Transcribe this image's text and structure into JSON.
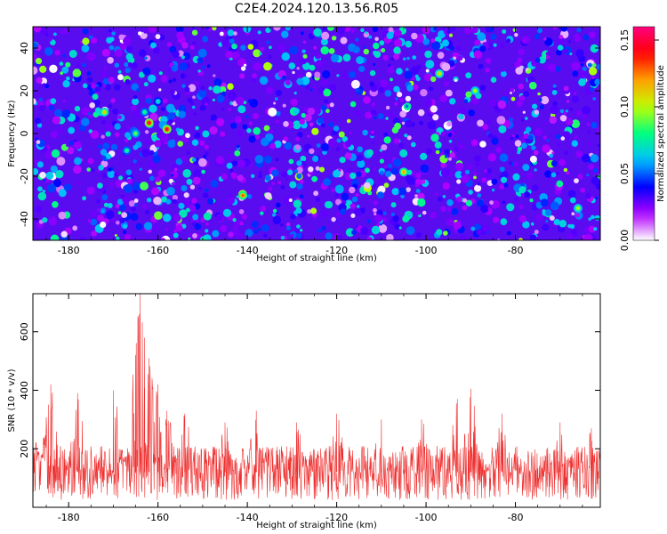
{
  "figure": {
    "title": "C2E4.2024.120.13.56.R05"
  },
  "chart_data": [
    {
      "type": "heatmap",
      "xlabel": "Height of straight line (km)",
      "ylabel": "Frequency (Hz)",
      "xlim": [
        -188,
        -61
      ],
      "ylim": [
        -50,
        50
      ],
      "xticks": [
        "-180",
        "-160",
        "-140",
        "-120",
        "-100",
        "-80"
      ],
      "yticks": [
        "-40",
        "-20",
        "0",
        "20",
        "40"
      ],
      "colorbar": {
        "label": "Normalized spectral amplitude",
        "range": [
          0,
          0.16
        ],
        "ticks": [
          "0.00",
          "0.05",
          "0.10",
          "0.15"
        ],
        "colors": [
          "#ffffff",
          "#b000ff",
          "#0000ff",
          "#00c0ff",
          "#00ff80",
          "#c0ff00",
          "#ffa000",
          "#ff0000",
          "#ff0080"
        ]
      },
      "background_level": 0.03,
      "hotspots": [
        {
          "x": -162,
          "y": 5,
          "value": 0.15
        },
        {
          "x": -158,
          "y": 2,
          "value": 0.15
        },
        {
          "x": -165,
          "y": 0,
          "value": 0.09
        },
        {
          "x": -163,
          "y": 10,
          "value": 0.08
        },
        {
          "x": -167,
          "y": -8,
          "value": 0.08
        },
        {
          "x": -160,
          "y": 15,
          "value": 0.07
        },
        {
          "x": -172,
          "y": 10,
          "value": 0.11
        },
        {
          "x": -141,
          "y": -29,
          "value": 0.13
        },
        {
          "x": -105,
          "y": -18,
          "value": 0.12
        },
        {
          "x": -97,
          "y": 28,
          "value": 0.11
        },
        {
          "x": -89,
          "y": 20,
          "value": 0.1
        },
        {
          "x": -66,
          "y": -35,
          "value": 0.1
        }
      ]
    },
    {
      "type": "line",
      "xlabel": "Height of straight line (km)",
      "ylabel": "SNR (10 * v/v)",
      "xlim": [
        -188,
        -61
      ],
      "ylim": [
        0,
        730
      ],
      "xticks": [
        "-180",
        "-160",
        "-140",
        "-120",
        "-100",
        "-80"
      ],
      "yticks": [
        "200",
        "400",
        "600"
      ],
      "color": "#ee3030",
      "baseline": 120,
      "noise_amplitude": 100,
      "peaks": [
        {
          "x": -188,
          "y": 250
        },
        {
          "x": -184,
          "y": 420
        },
        {
          "x": -178,
          "y": 390
        },
        {
          "x": -170,
          "y": 400
        },
        {
          "x": -165,
          "y": 520
        },
        {
          "x": -164,
          "y": 730
        },
        {
          "x": -163,
          "y": 580
        },
        {
          "x": -162,
          "y": 510
        },
        {
          "x": -160,
          "y": 420
        },
        {
          "x": -158,
          "y": 330
        },
        {
          "x": -154,
          "y": 320
        },
        {
          "x": -145,
          "y": 290
        },
        {
          "x": -138,
          "y": 330
        },
        {
          "x": -129,
          "y": 290
        },
        {
          "x": -120,
          "y": 320
        },
        {
          "x": -110,
          "y": 300
        },
        {
          "x": -101,
          "y": 300
        },
        {
          "x": -93,
          "y": 370
        },
        {
          "x": -90,
          "y": 405
        },
        {
          "x": -83,
          "y": 320
        },
        {
          "x": -70,
          "y": 290
        },
        {
          "x": -63,
          "y": 270
        }
      ]
    }
  ]
}
